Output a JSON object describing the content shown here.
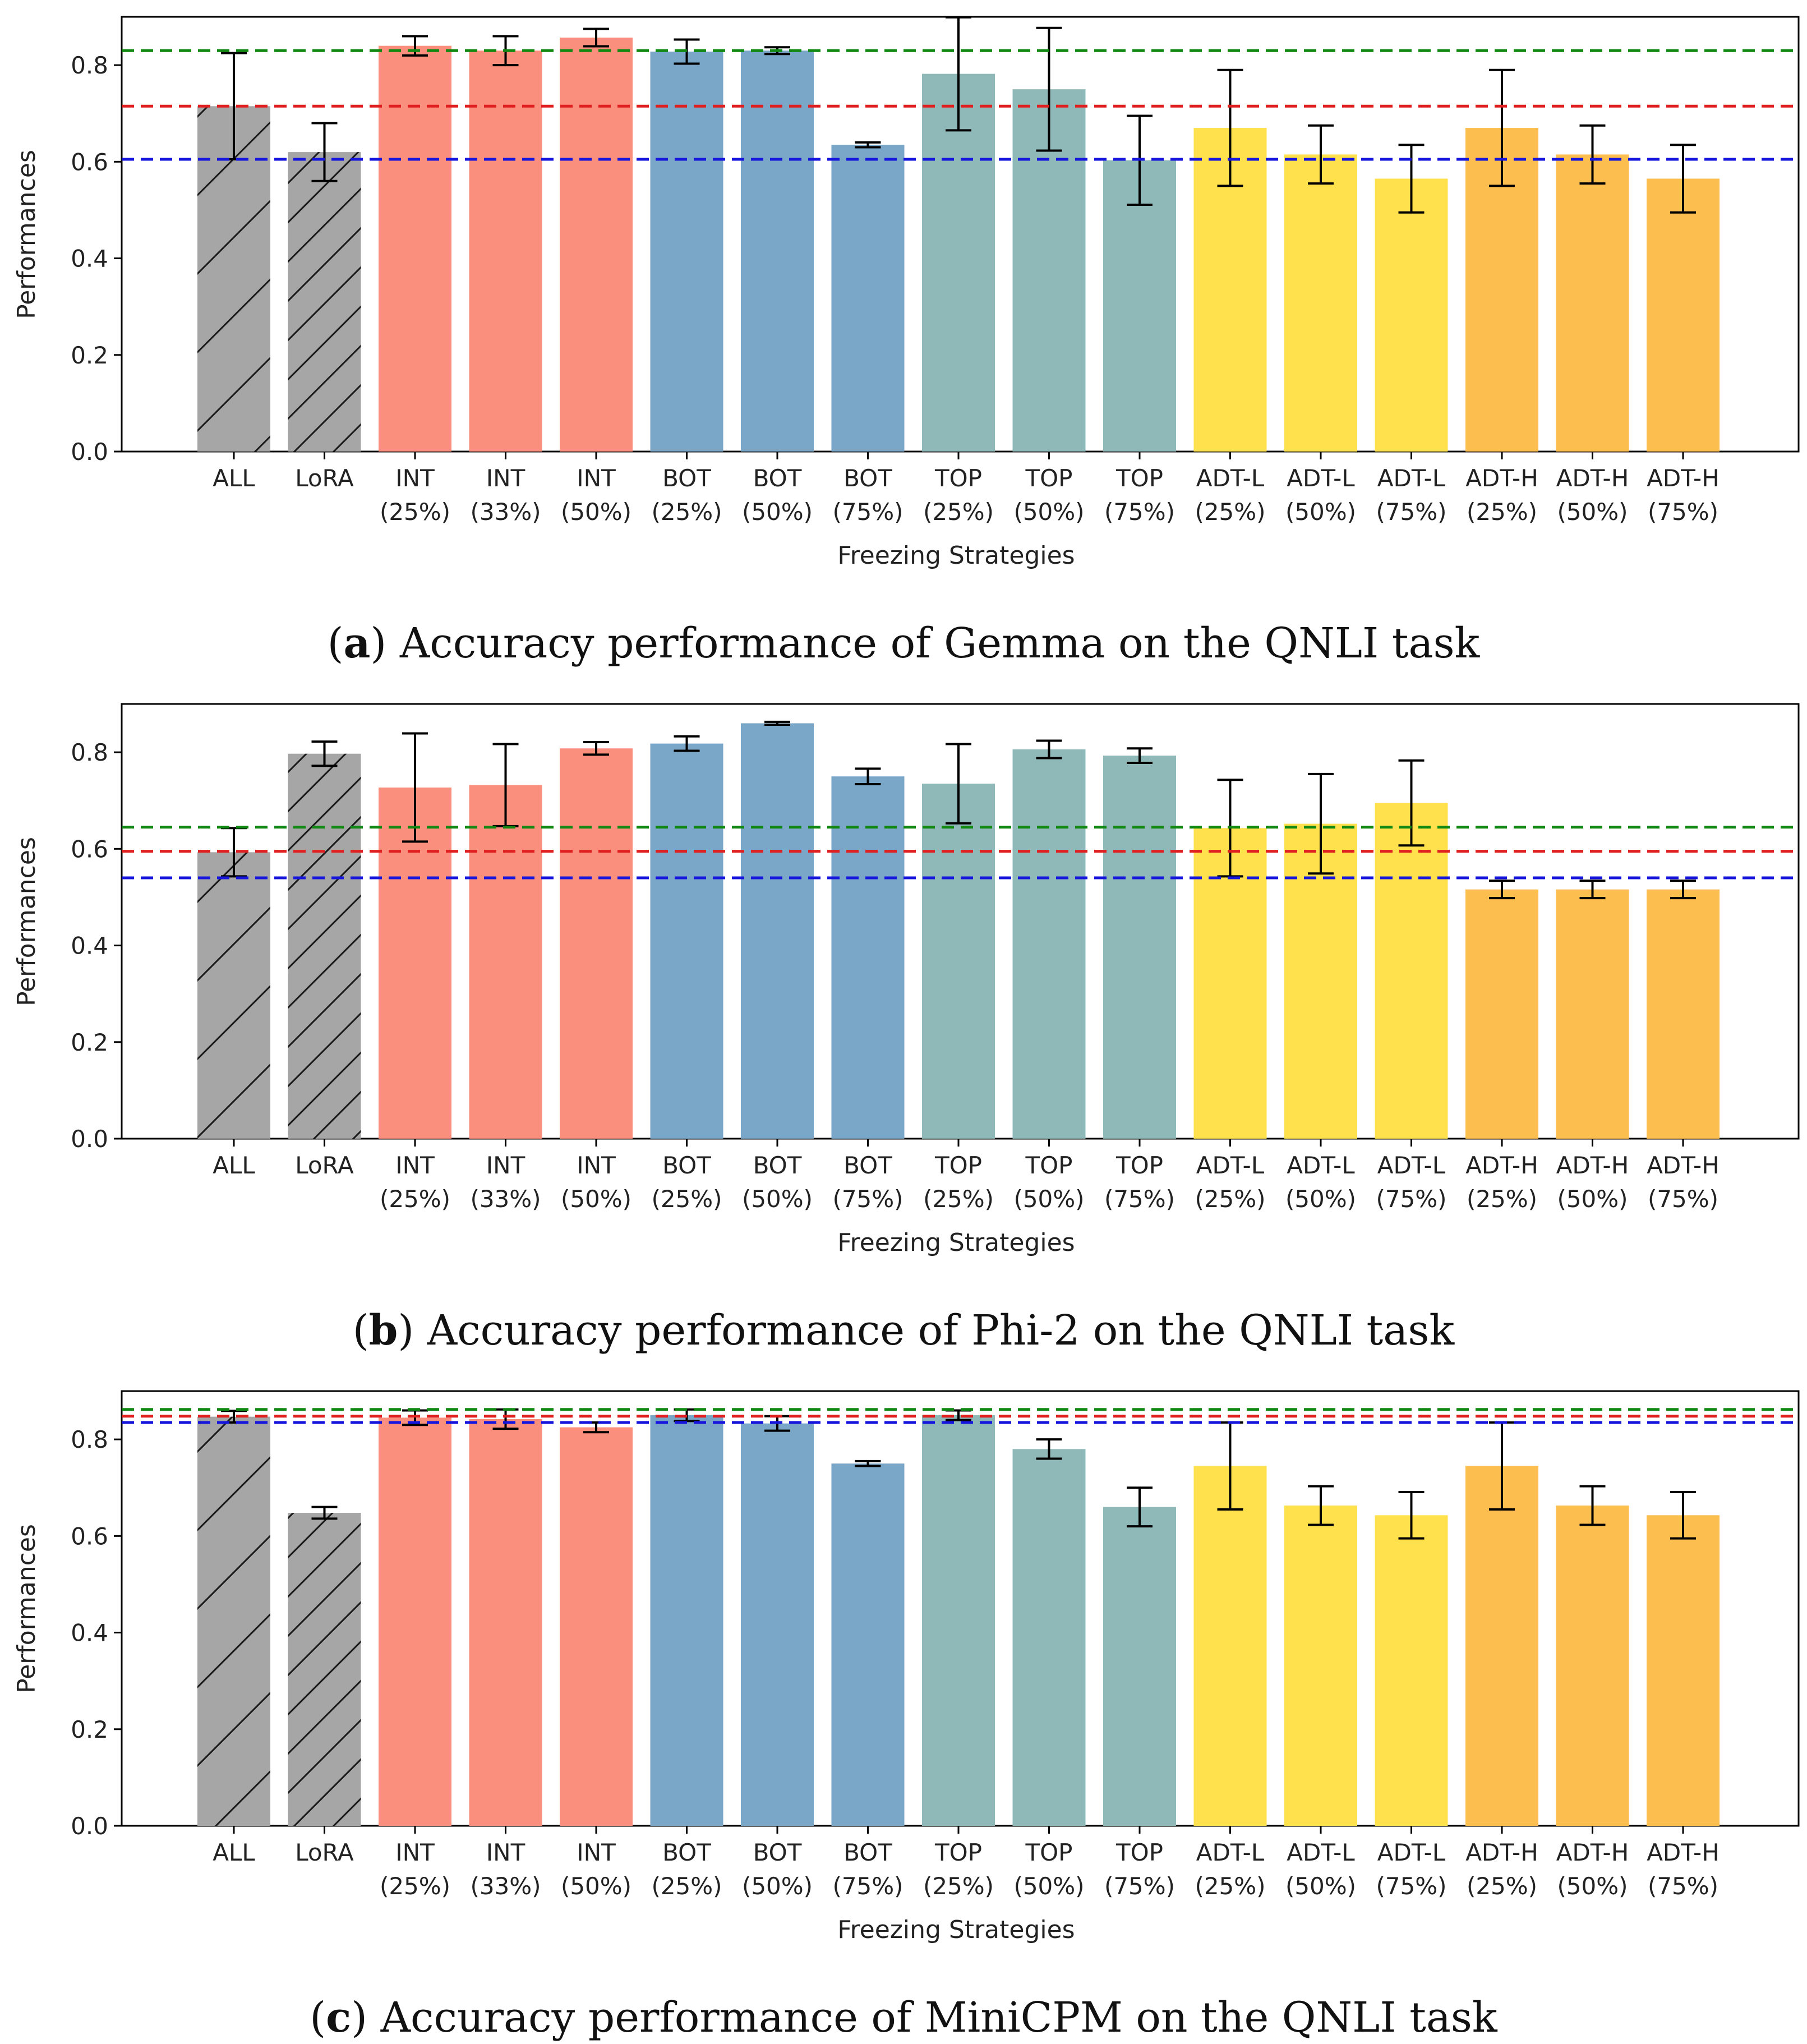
{
  "colors": {
    "ALL": "#a6a6a6",
    "LoRA": "#a6a6a6",
    "INT": "#fa8f7d",
    "BOT": "#7aa6c8",
    "TOP": "#8fb9b9",
    "ADT-L": "#ffe04d",
    "ADT-H": "#fbbe4f",
    "green_line": "#118811",
    "red_line": "#e02020",
    "blue_line": "#1515dd"
  },
  "chart_data": [
    {
      "panel": "a",
      "type": "bar",
      "caption_letter": "a",
      "caption_text": "Accuracy performance of Gemma on the QNLI task",
      "xlabel": "Freezing Strategies",
      "ylabel": "Performances",
      "ylim": [
        0,
        0.9
      ],
      "yticks": [
        "0.0",
        "0.2",
        "0.4",
        "0.6",
        "0.8"
      ],
      "categories": [
        {
          "line1": "ALL",
          "line2": "",
          "group": "ALL",
          "hatch": true
        },
        {
          "line1": "LoRA",
          "line2": "",
          "group": "LoRA",
          "hatch": true
        },
        {
          "line1": "INT",
          "line2": "(25%)",
          "group": "INT"
        },
        {
          "line1": "INT",
          "line2": "(33%)",
          "group": "INT"
        },
        {
          "line1": "INT",
          "line2": "(50%)",
          "group": "INT"
        },
        {
          "line1": "BOT",
          "line2": "(25%)",
          "group": "BOT"
        },
        {
          "line1": "BOT",
          "line2": "(50%)",
          "group": "BOT"
        },
        {
          "line1": "BOT",
          "line2": "(75%)",
          "group": "BOT"
        },
        {
          "line1": "TOP",
          "line2": "(25%)",
          "group": "TOP"
        },
        {
          "line1": "TOP",
          "line2": "(50%)",
          "group": "TOP"
        },
        {
          "line1": "TOP",
          "line2": "(75%)",
          "group": "TOP"
        },
        {
          "line1": "ADT-L",
          "line2": "(25%)",
          "group": "ADT-L"
        },
        {
          "line1": "ADT-L",
          "line2": "(50%)",
          "group": "ADT-L"
        },
        {
          "line1": "ADT-L",
          "line2": "(75%)",
          "group": "ADT-L"
        },
        {
          "line1": "ADT-H",
          "line2": "(25%)",
          "group": "ADT-H"
        },
        {
          "line1": "ADT-H",
          "line2": "(50%)",
          "group": "ADT-H"
        },
        {
          "line1": "ADT-H",
          "line2": "(75%)",
          "group": "ADT-H"
        }
      ],
      "values": [
        0.715,
        0.62,
        0.84,
        0.83,
        0.857,
        0.828,
        0.83,
        0.635,
        0.782,
        0.75,
        0.603,
        0.67,
        0.615,
        0.565,
        0.67,
        0.615,
        0.565
      ],
      "errors": [
        0.11,
        0.06,
        0.02,
        0.03,
        0.018,
        0.025,
        0.007,
        0.005,
        0.117,
        0.127,
        0.092,
        0.12,
        0.06,
        0.07,
        0.12,
        0.06,
        0.07
      ],
      "hlines": [
        {
          "value": 0.83,
          "color": "green"
        },
        {
          "value": 0.715,
          "color": "red"
        },
        {
          "value": 0.605,
          "color": "blue"
        }
      ]
    },
    {
      "panel": "b",
      "type": "bar",
      "caption_letter": "b",
      "caption_text": "Accuracy performance of Phi-2 on the QNLI task",
      "xlabel": "Freezing Strategies",
      "ylabel": "Performances",
      "ylim": [
        0,
        0.9
      ],
      "yticks": [
        "0.0",
        "0.2",
        "0.4",
        "0.6",
        "0.8"
      ],
      "categories": [
        {
          "line1": "ALL",
          "line2": "",
          "group": "ALL",
          "hatch": true
        },
        {
          "line1": "LoRA",
          "line2": "",
          "group": "LoRA",
          "hatch": true
        },
        {
          "line1": "INT",
          "line2": "(25%)",
          "group": "INT"
        },
        {
          "line1": "INT",
          "line2": "(33%)",
          "group": "INT"
        },
        {
          "line1": "INT",
          "line2": "(50%)",
          "group": "INT"
        },
        {
          "line1": "BOT",
          "line2": "(25%)",
          "group": "BOT"
        },
        {
          "line1": "BOT",
          "line2": "(50%)",
          "group": "BOT"
        },
        {
          "line1": "BOT",
          "line2": "(75%)",
          "group": "BOT"
        },
        {
          "line1": "TOP",
          "line2": "(25%)",
          "group": "TOP"
        },
        {
          "line1": "TOP",
          "line2": "(50%)",
          "group": "TOP"
        },
        {
          "line1": "TOP",
          "line2": "(75%)",
          "group": "TOP"
        },
        {
          "line1": "ADT-L",
          "line2": "(25%)",
          "group": "ADT-L"
        },
        {
          "line1": "ADT-L",
          "line2": "(50%)",
          "group": "ADT-L"
        },
        {
          "line1": "ADT-L",
          "line2": "(75%)",
          "group": "ADT-L"
        },
        {
          "line1": "ADT-H",
          "line2": "(25%)",
          "group": "ADT-H"
        },
        {
          "line1": "ADT-H",
          "line2": "(50%)",
          "group": "ADT-H"
        },
        {
          "line1": "ADT-H",
          "line2": "(75%)",
          "group": "ADT-H"
        }
      ],
      "values": [
        0.593,
        0.797,
        0.727,
        0.732,
        0.808,
        0.818,
        0.86,
        0.75,
        0.735,
        0.806,
        0.793,
        0.643,
        0.652,
        0.695,
        0.516,
        0.516,
        0.516
      ],
      "errors": [
        0.05,
        0.025,
        0.112,
        0.085,
        0.013,
        0.015,
        0.003,
        0.016,
        0.082,
        0.018,
        0.015,
        0.1,
        0.103,
        0.088,
        0.018,
        0.018,
        0.018
      ],
      "hlines": [
        {
          "value": 0.645,
          "color": "green"
        },
        {
          "value": 0.595,
          "color": "red"
        },
        {
          "value": 0.54,
          "color": "blue"
        }
      ]
    },
    {
      "panel": "c",
      "type": "bar",
      "caption_letter": "c",
      "caption_text": "Accuracy performance of MiniCPM on the QNLI task",
      "xlabel": "Freezing Strategies",
      "ylabel": "Performances",
      "ylim": [
        0,
        0.9
      ],
      "yticks": [
        "0.0",
        "0.2",
        "0.4",
        "0.6",
        "0.8"
      ],
      "categories": [
        {
          "line1": "ALL",
          "line2": "",
          "group": "ALL",
          "hatch": true
        },
        {
          "line1": "LoRA",
          "line2": "",
          "group": "LoRA",
          "hatch": true
        },
        {
          "line1": "INT",
          "line2": "(25%)",
          "group": "INT"
        },
        {
          "line1": "INT",
          "line2": "(33%)",
          "group": "INT"
        },
        {
          "line1": "INT",
          "line2": "(50%)",
          "group": "INT"
        },
        {
          "line1": "BOT",
          "line2": "(25%)",
          "group": "BOT"
        },
        {
          "line1": "BOT",
          "line2": "(50%)",
          "group": "BOT"
        },
        {
          "line1": "BOT",
          "line2": "(75%)",
          "group": "BOT"
        },
        {
          "line1": "TOP",
          "line2": "(25%)",
          "group": "TOP"
        },
        {
          "line1": "TOP",
          "line2": "(50%)",
          "group": "TOP"
        },
        {
          "line1": "TOP",
          "line2": "(75%)",
          "group": "TOP"
        },
        {
          "line1": "ADT-L",
          "line2": "(25%)",
          "group": "ADT-L"
        },
        {
          "line1": "ADT-L",
          "line2": "(50%)",
          "group": "ADT-L"
        },
        {
          "line1": "ADT-L",
          "line2": "(75%)",
          "group": "ADT-L"
        },
        {
          "line1": "ADT-H",
          "line2": "(25%)",
          "group": "ADT-H"
        },
        {
          "line1": "ADT-H",
          "line2": "(50%)",
          "group": "ADT-H"
        },
        {
          "line1": "ADT-H",
          "line2": "(75%)",
          "group": "ADT-H"
        }
      ],
      "values": [
        0.847,
        0.648,
        0.845,
        0.842,
        0.825,
        0.85,
        0.833,
        0.75,
        0.85,
        0.78,
        0.66,
        0.745,
        0.663,
        0.643,
        0.745,
        0.663,
        0.643
      ],
      "errors": [
        0.012,
        0.012,
        0.015,
        0.02,
        0.01,
        0.012,
        0.015,
        0.005,
        0.01,
        0.02,
        0.04,
        0.09,
        0.04,
        0.048,
        0.09,
        0.04,
        0.048
      ],
      "hlines": [
        {
          "value": 0.862,
          "color": "green"
        },
        {
          "value": 0.848,
          "color": "red"
        },
        {
          "value": 0.835,
          "color": "blue"
        }
      ]
    }
  ]
}
